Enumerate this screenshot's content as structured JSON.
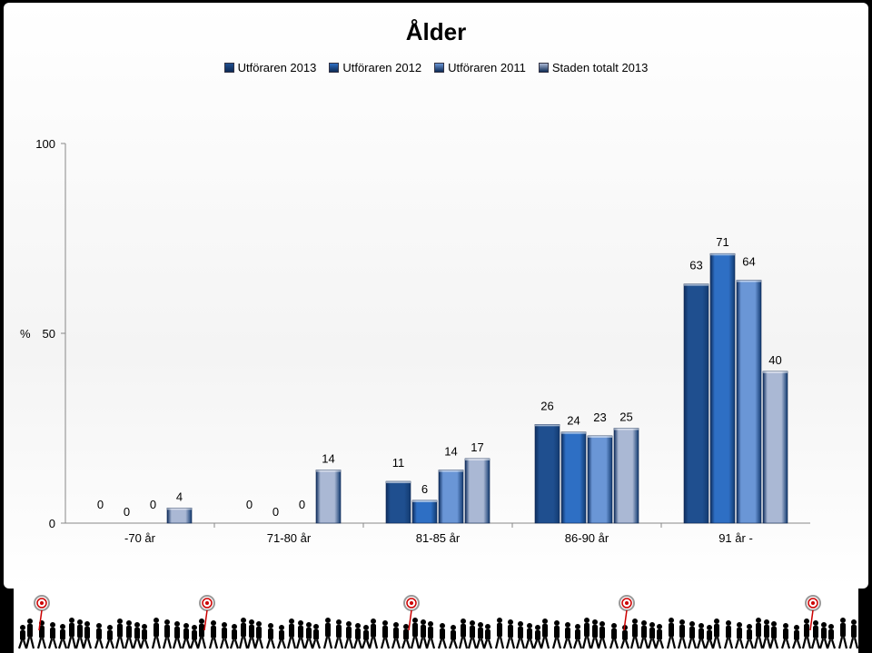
{
  "chart_data": {
    "type": "bar",
    "title": "Ålder",
    "ylabel": "%",
    "ylim": [
      0,
      100
    ],
    "yticks": [
      "0",
      "50",
      "100"
    ],
    "legend_position": "top",
    "grid": false,
    "categories": [
      "-70 år",
      "71-80 år",
      "81-85 år",
      "86-90 år",
      "91 år -"
    ],
    "series": [
      {
        "name": "Utföraren 2013",
        "values": [
          0,
          0,
          11,
          26,
          63
        ],
        "color": "#1f4f8f"
      },
      {
        "name": "Utföraren 2012",
        "values": [
          0,
          0,
          6,
          24,
          71
        ],
        "color": "#2e6fc4"
      },
      {
        "name": "Utföraren 2011",
        "values": [
          0,
          0,
          14,
          23,
          64
        ],
        "color": "#6a96d6"
      },
      {
        "name": "Staden totalt 2013",
        "values": [
          4,
          14,
          17,
          25,
          40
        ],
        "color": "#aab8d4"
      }
    ]
  },
  "footer": {
    "decoration": "silhouettes-of-walking-people-with-target-icons"
  }
}
